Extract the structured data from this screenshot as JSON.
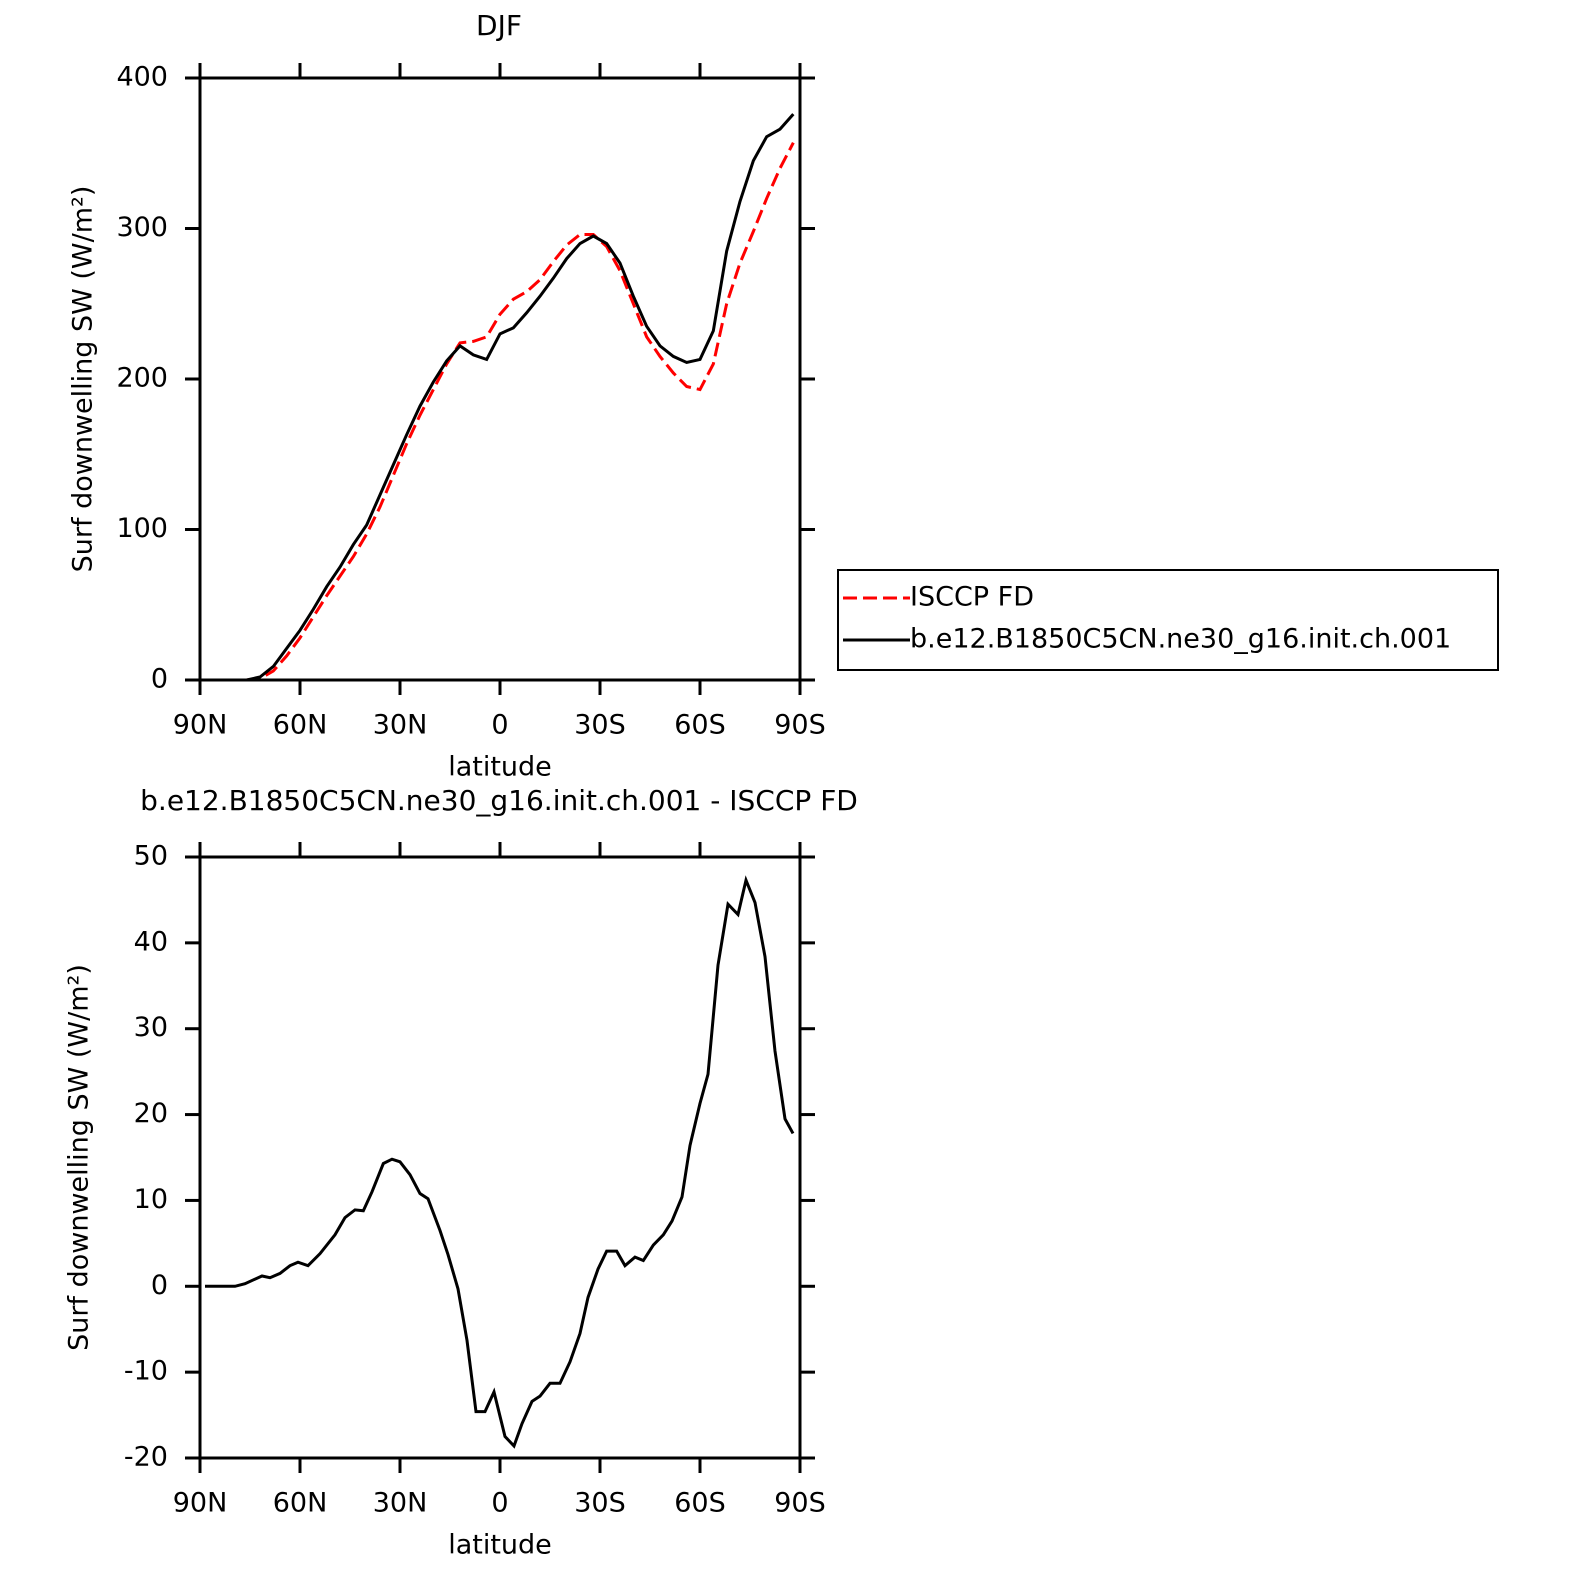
{
  "chart_data": [
    {
      "type": "line",
      "title": "DJF",
      "xlabel": "latitude",
      "ylabel": "Surf downwelling SW (W/m²)",
      "xlim": [
        90,
        -90
      ],
      "xticks": [
        {
          "value": 90,
          "label": "90N"
        },
        {
          "value": 60,
          "label": "60N"
        },
        {
          "value": 30,
          "label": "30N"
        },
        0,
        {
          "value": -30,
          "label": "30S"
        },
        {
          "value": -60,
          "label": "60S"
        },
        {
          "value": -90,
          "label": "90S"
        }
      ],
      "ylim": [
        0,
        400
      ],
      "yticks": [
        0,
        100,
        200,
        300,
        400
      ],
      "legend": "right",
      "x": [
        88,
        84,
        80,
        76,
        72,
        68,
        64,
        60,
        56,
        52,
        48,
        44,
        40,
        36,
        32,
        28,
        24,
        20,
        16,
        12,
        8,
        4,
        0,
        -4,
        -8,
        -12,
        -16,
        -20,
        -24,
        -28,
        -32,
        -36,
        -40,
        -44,
        -48,
        -52,
        -56,
        -60,
        -64,
        -68,
        -72,
        -76,
        -80,
        -84,
        -88
      ],
      "series": [
        {
          "name": "ISCCP FD",
          "color": "#ff0000",
          "linestyle": "dashed",
          "values": [
            0,
            0,
            0,
            0,
            1,
            6,
            16,
            28,
            42,
            56,
            69,
            82,
            97,
            115,
            136,
            157,
            176,
            193,
            210,
            224,
            225,
            228,
            243,
            253,
            258,
            266,
            278,
            289,
            296,
            296,
            288,
            272,
            250,
            228,
            215,
            204,
            195,
            193,
            210,
            250,
            277,
            298,
            320,
            340,
            357
          ]
        },
        {
          "name": "b.e12.B1850C5CN.ne30_g16.init.ch.001",
          "color": "#000000",
          "linestyle": "solid",
          "values": [
            0,
            0,
            0,
            0,
            2,
            9,
            21,
            33,
            47,
            62,
            75,
            90,
            103,
            123,
            143,
            163,
            182,
            198,
            212,
            222,
            216,
            213,
            230,
            234,
            244,
            255,
            267,
            280,
            290,
            295,
            290,
            277,
            255,
            235,
            222,
            215,
            211,
            213,
            232,
            285,
            318,
            345,
            361,
            366,
            376
          ]
        }
      ]
    },
    {
      "type": "line",
      "title": "b.e12.B1850C5CN.ne30_g16.init.ch.001 - ISCCP FD",
      "xlabel": "latitude",
      "ylabel": "Surf downwelling SW (W/m²)",
      "xlim": [
        90,
        -90
      ],
      "xticks": [
        {
          "value": 90,
          "label": "90N"
        },
        {
          "value": 60,
          "label": "60N"
        },
        {
          "value": 30,
          "label": "30N"
        },
        0,
        {
          "value": -30,
          "label": "30S"
        },
        {
          "value": -60,
          "label": "60S"
        },
        {
          "value": -90,
          "label": "90S"
        }
      ],
      "ylim": [
        -20,
        50
      ],
      "yticks": [
        -20,
        -10,
        0,
        10,
        20,
        30,
        40,
        50
      ],
      "x": [
        88.5,
        79.5,
        76.5,
        71.4,
        69,
        66,
        63,
        60.6,
        57.6,
        54,
        49.5,
        46.5,
        43.5,
        41,
        38.4,
        35,
        32.4,
        30,
        27,
        24,
        21.6,
        18,
        15.6,
        12.6,
        9.9,
        7.2,
        4.5,
        1.8,
        -1.5,
        -4.2,
        -6.6,
        -9.6,
        -12,
        -15,
        -18,
        -21,
        -24,
        -26.4,
        -29.4,
        -32,
        -35,
        -37.5,
        -40.5,
        -43,
        -46,
        -49,
        -51.6,
        -54.6,
        -57,
        -60,
        -62.4,
        -65.4,
        -68.4,
        -71.4,
        -73.8,
        -76.5,
        -79.5,
        -82.5,
        -85.5,
        -87.9
      ],
      "series": [
        {
          "color": "#000000",
          "linestyle": "solid",
          "values": [
            0,
            0,
            0.3,
            1.2,
            1,
            1.5,
            2.4,
            2.8,
            2.4,
            3.8,
            6,
            8,
            8.9,
            8.8,
            11,
            14.3,
            14.8,
            14.5,
            13,
            10.8,
            10.2,
            6.5,
            3.7,
            -0.3,
            -6.3,
            -14.6,
            -14.6,
            -12.3,
            -17.5,
            -18.6,
            -16,
            -13.4,
            -12.8,
            -11.3,
            -11.3,
            -8.8,
            -5.5,
            -1.3,
            2,
            4.1,
            4.1,
            2.4,
            3.4,
            3,
            4.8,
            6,
            7.6,
            10.4,
            16.4,
            21.3,
            24.7,
            37.4,
            44.5,
            43.3,
            47.3,
            44.7,
            38.4,
            27.4,
            19.5,
            17.8
          ]
        }
      ]
    }
  ]
}
